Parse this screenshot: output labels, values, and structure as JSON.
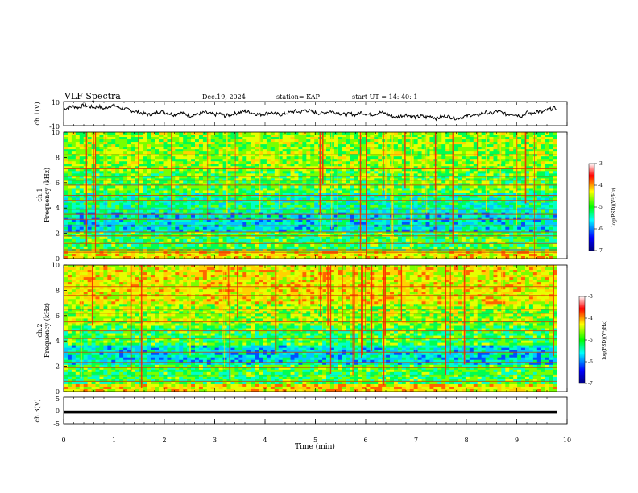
{
  "header": {
    "title": "VLF Spectra",
    "date": "Dec.19, 2024",
    "station": "station= KAP",
    "start": "start  UT =   14: 40: 1"
  },
  "chart_data": [
    {
      "type": "line",
      "id": "ch1-waveform",
      "ylabel": "ch.1(V)",
      "ylim": [
        -10,
        10
      ],
      "yticklabels": [
        "10",
        "-10"
      ],
      "xlim": [
        0,
        10
      ],
      "x": [
        0,
        0.1,
        0.2,
        0.3,
        0.4,
        0.5,
        0.6,
        0.7,
        0.8,
        0.9,
        1.0,
        1.1,
        1.2,
        1.3,
        1.4,
        1.5,
        1.6,
        1.7,
        1.8,
        1.9,
        2.0,
        2.1,
        2.2,
        2.3,
        2.4,
        2.5,
        2.6,
        2.7,
        2.8,
        2.9,
        3.0,
        3.1,
        3.2,
        3.3,
        3.4,
        3.5,
        3.6,
        3.7,
        3.8,
        3.9,
        4.0,
        4.1,
        4.2,
        4.3,
        4.4,
        4.5,
        4.6,
        4.7,
        4.8,
        4.9,
        5.0,
        5.1,
        5.2,
        5.3,
        5.4,
        5.5,
        5.6,
        5.7,
        5.8,
        5.9,
        6.0,
        6.1,
        6.2,
        6.3,
        6.4,
        6.5,
        6.6,
        6.7,
        6.8,
        6.9,
        7.0,
        7.1,
        7.2,
        7.3,
        7.4,
        7.5,
        7.6,
        7.7,
        7.8,
        7.9,
        8.0,
        8.1,
        8.2,
        8.3,
        8.4,
        8.5,
        8.6,
        8.7,
        8.8,
        8.9,
        9.0,
        9.1,
        9.2,
        9.3,
        9.4,
        9.5,
        9.6,
        9.7,
        9.8
      ],
      "values": [
        4,
        5,
        6,
        5,
        7,
        6,
        5,
        6,
        4,
        6,
        7,
        5,
        4,
        3,
        2,
        1,
        0,
        -1,
        0,
        2,
        1,
        0,
        -1,
        1,
        0,
        -2,
        -1,
        0,
        1,
        0,
        -1,
        0,
        -2,
        -1,
        0,
        1,
        2,
        1,
        0,
        -1,
        0,
        1,
        0,
        -1,
        0,
        1,
        2,
        1,
        3,
        2,
        1,
        0,
        1,
        2,
        1,
        0,
        -1,
        0,
        -1,
        1,
        0,
        -1,
        0,
        1,
        0,
        -2,
        -3,
        -2,
        -1,
        -2,
        -3,
        -2,
        -3,
        -2,
        -4,
        -3,
        -2,
        -3,
        -4,
        -3,
        -2,
        -1,
        -2,
        0,
        1,
        0,
        2,
        1,
        -1,
        0,
        -1,
        -2,
        1,
        0,
        2,
        1,
        3,
        4,
        5
      ]
    },
    {
      "type": "heatmap",
      "id": "ch1-spectrogram",
      "ylabel_top": "ch.1",
      "ylabel": "Frequency (kHz)",
      "ylim": [
        0,
        10
      ],
      "yticks": [
        0,
        2,
        4,
        6,
        8,
        10
      ],
      "xlim": [
        0,
        10
      ],
      "data_xmax": 9.8,
      "horizontal_lines_khz": [
        0.5,
        0.7,
        1.2,
        1.8,
        2.1,
        2.6,
        3.1,
        3.5,
        3.9,
        4.6,
        5.0,
        5.8,
        6.2,
        6.5,
        7.1,
        8.2
      ],
      "colorbar": {
        "label": "log(PSD)(V²/Hz)",
        "range": [
          -7,
          -3
        ],
        "ticks": [
          -7,
          -6,
          -5,
          -4,
          -3
        ],
        "colors": [
          "#000080",
          "#0000ff",
          "#00ffff",
          "#00ff00",
          "#ffff00",
          "#ff0000",
          "#ffffff"
        ]
      }
    },
    {
      "type": "heatmap",
      "id": "ch2-spectrogram",
      "ylabel_top": "ch.2",
      "ylabel": "Frequency (kHz)",
      "ylim": [
        0,
        10
      ],
      "yticks": [
        0,
        2,
        4,
        6,
        8,
        10
      ],
      "xlim": [
        0,
        10
      ],
      "data_xmax": 9.8,
      "horizontal_lines_khz": [
        0.8,
        1.3,
        1.9,
        2.3,
        3.1,
        3.6,
        4.2,
        4.8,
        5.5,
        6.2,
        6.5,
        7.6,
        8.3
      ],
      "colorbar": {
        "label": "log(PSD)(V²/Hz)",
        "range": [
          -7,
          -3
        ],
        "ticks": [
          -7,
          -6,
          -5,
          -4,
          -3
        ],
        "colors": [
          "#000080",
          "#0000ff",
          "#00ffff",
          "#00ff00",
          "#ffff00",
          "#ff0000",
          "#ffffff"
        ]
      }
    },
    {
      "type": "line",
      "id": "ch3-waveform",
      "ylabel": "ch.3(V)",
      "ylim": [
        -5,
        5
      ],
      "yticklabels": [
        "5",
        "0",
        "-5"
      ],
      "xlim": [
        0,
        10
      ],
      "xticks": [
        0,
        1,
        2,
        3,
        4,
        5,
        6,
        7,
        8,
        9,
        10
      ],
      "xlabel": "Time  (min)",
      "band": [
        -1.2,
        -0.1
      ],
      "data_xmax": 9.8
    }
  ]
}
